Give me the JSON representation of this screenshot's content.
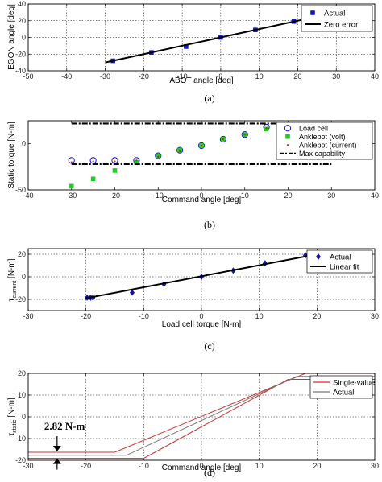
{
  "chart_data": [
    {
      "id": "a",
      "type": "scatter",
      "caption": "(a)",
      "xlabel": "ABOT angle [deg]",
      "ylabel": "EGON angle [deg]",
      "xlim": [
        -50,
        40
      ],
      "ylim": [
        -40,
        40
      ],
      "xticks": [
        -50,
        -40,
        -30,
        -20,
        -10,
        0,
        10,
        20,
        30,
        40
      ],
      "yticks": [
        -40,
        -20,
        0,
        20,
        40
      ],
      "grid": true,
      "legend_position": "top-right",
      "series": [
        {
          "name": "Actual",
          "kind": "marker",
          "marker": "square",
          "color": "#1414c8",
          "x": [
            -28,
            -18,
            -9,
            0,
            9,
            19,
            28
          ],
          "y": [
            -28,
            -18,
            -11,
            0,
            9,
            19,
            28
          ]
        },
        {
          "name": "Zero error",
          "kind": "line",
          "color": "#000000",
          "x": [
            -30,
            30
          ],
          "y": [
            -30,
            30
          ]
        }
      ]
    },
    {
      "id": "b",
      "type": "scatter",
      "caption": "(b)",
      "xlabel": "Command angle [deg]",
      "ylabel": "Static torque [N-m]",
      "xlim": [
        -40,
        40
      ],
      "ylim": [
        -50,
        25
      ],
      "xticks": [
        -40,
        -30,
        -20,
        -10,
        0,
        10,
        20,
        30,
        40
      ],
      "yticks": [
        -50,
        0
      ],
      "grid": false,
      "legend_position": "top-right",
      "series": [
        {
          "name": "Load cell",
          "kind": "marker",
          "marker": "circle",
          "color": "#1414c8",
          "x": [
            -30,
            -25,
            -20,
            -15,
            -10,
            -5,
            0,
            5,
            10,
            15
          ],
          "y": [
            -18,
            -18,
            -18,
            -18,
            -13,
            -7,
            -2,
            5,
            10,
            18
          ]
        },
        {
          "name": "Anklebot (volt)",
          "kind": "marker",
          "marker": "square",
          "color": "#22cc22",
          "x": [
            -30,
            -25,
            -20,
            -15,
            -10,
            -5,
            0,
            5,
            10,
            15
          ],
          "y": [
            -46,
            -38,
            -29,
            -20,
            -13,
            -7,
            -2,
            5,
            10,
            16
          ]
        },
        {
          "name": "Anklebot (current)",
          "kind": "marker",
          "marker": "dot",
          "color": "#cc2222",
          "x": [
            -30,
            -25,
            -20,
            -15,
            -10,
            -5,
            0,
            5,
            10,
            15
          ],
          "y": [
            -20,
            -19,
            -19,
            -18,
            -14,
            -8,
            -2,
            5,
            10,
            17
          ]
        },
        {
          "name": "Max capability",
          "kind": "dashdot",
          "color": "#000000",
          "lines": [
            {
              "x": [
                -30,
                30
              ],
              "y": [
                22,
                22
              ]
            },
            {
              "x": [
                -30,
                30
              ],
              "y": [
                -22,
                -22
              ]
            }
          ]
        }
      ]
    },
    {
      "id": "c",
      "type": "scatter",
      "caption": "(c)",
      "xlabel": "Load cell torque [N-m]",
      "ylabel_main": "τ",
      "ylabel_sub": "current",
      "ylabel_unit": " [N-m]",
      "xlim": [
        -30,
        30
      ],
      "ylim": [
        -30,
        25
      ],
      "xticks": [
        -30,
        -20,
        -10,
        0,
        10,
        20,
        30
      ],
      "yticks": [
        -20,
        0,
        20
      ],
      "grid": true,
      "legend_position": "top-right",
      "series": [
        {
          "name": "Actual",
          "kind": "marker",
          "marker": "diamond",
          "color": "#1414a0",
          "x": [
            -19.8,
            -19.2,
            -18.8,
            -12,
            -6.5,
            0,
            5.5,
            11,
            18
          ],
          "y": [
            -18.5,
            -18.5,
            -18.5,
            -14,
            -6.5,
            0,
            5.5,
            12,
            19
          ]
        },
        {
          "name": "Linear fit",
          "kind": "line",
          "color": "#000000",
          "x": [
            -20,
            20
          ],
          "y": [
            -19,
            20
          ]
        }
      ]
    },
    {
      "id": "d",
      "type": "line",
      "caption": "(d)",
      "xlabel": "Command angle [deg]",
      "ylabel_main": "τ",
      "ylabel_sub": "static",
      "ylabel_unit": " [N-m]",
      "xlim": [
        -30,
        30
      ],
      "ylim": [
        -20,
        20
      ],
      "xticks": [
        -30,
        -20,
        -10,
        0,
        10,
        20,
        30
      ],
      "yticks": [
        -20,
        -10,
        0,
        10,
        20
      ],
      "grid": true,
      "legend_position": "top-right",
      "annotation": {
        "text": "2.82 N-m",
        "x": -25,
        "y_top": -16.3,
        "y_bottom": -19.1
      },
      "series": [
        {
          "name": "Single-value",
          "kind": "line",
          "color": "#cc3333",
          "lines": [
            {
              "x": [
                -30,
                -15,
                18,
                30
              ],
              "y": [
                -16.3,
                -16.3,
                20,
                20
              ]
            },
            {
              "x": [
                -30,
                -10,
                15,
                30
              ],
              "y": [
                -19.1,
                -19.1,
                17.2,
                17.2
              ]
            }
          ]
        },
        {
          "name": "Actual",
          "kind": "line",
          "color": "#777777",
          "lines": [
            {
              "x": [
                -30,
                -13,
                16.5,
                30
              ],
              "y": [
                -17.7,
                -17.7,
                18.6,
                18.6
              ]
            }
          ]
        }
      ]
    }
  ]
}
